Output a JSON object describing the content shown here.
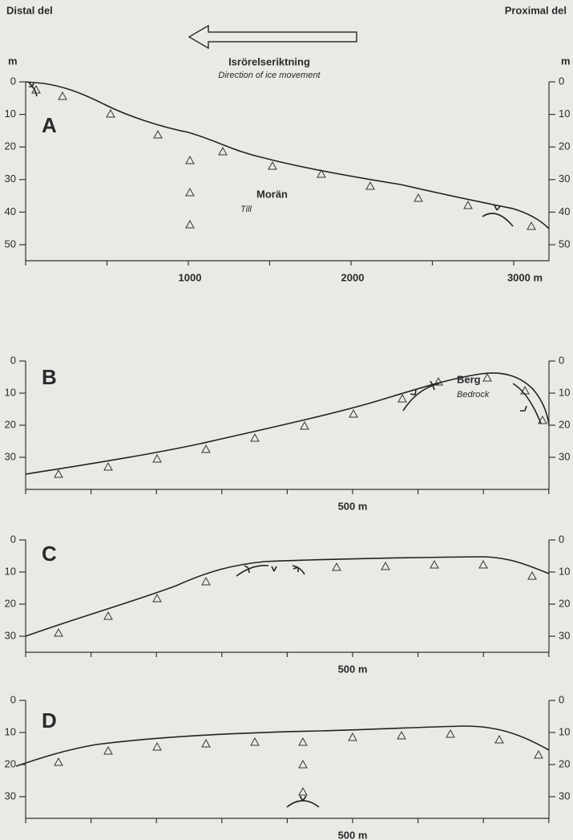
{
  "header": {
    "left": "Distal del",
    "right": "Proximal del",
    "direction": "Isrörelseriktning",
    "direction_en": "Direction of ice movement",
    "unit_left": "m",
    "unit_right": "m"
  },
  "panels": [
    {
      "label": "A",
      "depth_ticks": [
        "0",
        "10",
        "20",
        "30",
        "40",
        "50"
      ],
      "distance_labels": [
        "1000",
        "2000",
        "3000 m"
      ],
      "material": "Morän",
      "material_en": "Till"
    },
    {
      "label": "B",
      "depth_ticks": [
        "0",
        "10",
        "20",
        "30"
      ],
      "distance_labels": [
        "500 m"
      ],
      "material": "Berg",
      "material_en": "Bedrock"
    },
    {
      "label": "C",
      "depth_ticks": [
        "0",
        "10",
        "20",
        "30"
      ],
      "distance_labels": [
        "500 m"
      ]
    },
    {
      "label": "D",
      "depth_ticks": [
        "0",
        "10",
        "20",
        "30"
      ],
      "distance_labels": [
        "500 m"
      ]
    }
  ]
}
